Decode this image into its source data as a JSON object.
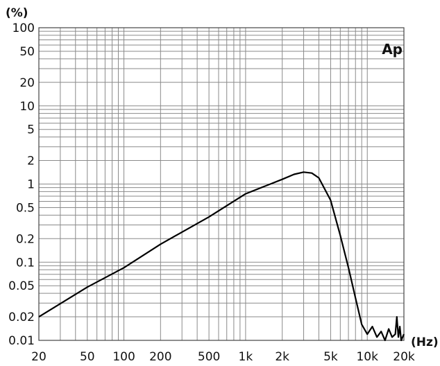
{
  "chart_data": {
    "type": "line",
    "title": "",
    "xlabel": "(Hz)",
    "ylabel": "(%)",
    "annotation": "Ap",
    "x_scale": "log",
    "y_scale": "log",
    "xlim": [
      20,
      20000
    ],
    "ylim": [
      0.01,
      100
    ],
    "grid": true,
    "x_ticks": [
      {
        "value": 20,
        "label": "20"
      },
      {
        "value": 50,
        "label": "50"
      },
      {
        "value": 100,
        "label": "100"
      },
      {
        "value": 200,
        "label": "200"
      },
      {
        "value": 500,
        "label": "500"
      },
      {
        "value": 1000,
        "label": "1k"
      },
      {
        "value": 2000,
        "label": "2k"
      },
      {
        "value": 5000,
        "label": "5k"
      },
      {
        "value": 10000,
        "label": "10k"
      },
      {
        "value": 20000,
        "label": "20k"
      }
    ],
    "y_ticks": [
      {
        "value": 100,
        "label": "100"
      },
      {
        "value": 50,
        "label": "50"
      },
      {
        "value": 20,
        "label": "20"
      },
      {
        "value": 10,
        "label": "10"
      },
      {
        "value": 5,
        "label": "5"
      },
      {
        "value": 2,
        "label": "2"
      },
      {
        "value": 1,
        "label": "1"
      },
      {
        "value": 0.5,
        "label": "0.5"
      },
      {
        "value": 0.2,
        "label": "0.2"
      },
      {
        "value": 0.1,
        "label": "0.1"
      },
      {
        "value": 0.05,
        "label": "0.05"
      },
      {
        "value": 0.02,
        "label": "0.02"
      },
      {
        "value": 0.01,
        "label": "0.01"
      }
    ],
    "series": [
      {
        "x": [
          20,
          50,
          100,
          200,
          500,
          1000,
          2000,
          2500,
          3000,
          3500,
          4000,
          5000,
          6000,
          7000,
          8000,
          9000,
          10000,
          11000,
          12000,
          13000,
          14000,
          15000,
          16000,
          17000,
          17500,
          18000,
          18500,
          19000,
          20000
        ],
        "y": [
          0.02,
          0.048,
          0.085,
          0.17,
          0.38,
          0.75,
          1.15,
          1.33,
          1.42,
          1.38,
          1.2,
          0.62,
          0.22,
          0.085,
          0.035,
          0.016,
          0.012,
          0.015,
          0.011,
          0.013,
          0.01,
          0.014,
          0.011,
          0.012,
          0.02,
          0.011,
          0.015,
          0.01,
          0.012
        ]
      }
    ]
  }
}
